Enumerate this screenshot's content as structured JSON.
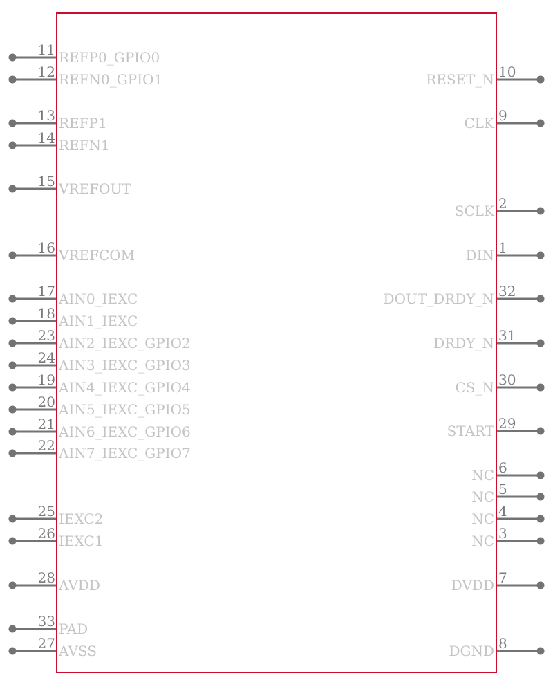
{
  "symbol": {
    "body_color": "#c8102e",
    "pin_color": "#737373",
    "left_pins": [
      {
        "number": "11",
        "name": "REFP0_GPIO0"
      },
      {
        "number": "12",
        "name": "REFN0_GPIO1"
      },
      {
        "number": "13",
        "name": "REFP1"
      },
      {
        "number": "14",
        "name": "REFN1"
      },
      {
        "number": "15",
        "name": "VREFOUT"
      },
      {
        "number": "16",
        "name": "VREFCOM"
      },
      {
        "number": "17",
        "name": "AIN0_IEXC"
      },
      {
        "number": "18",
        "name": "AIN1_IEXC"
      },
      {
        "number": "23",
        "name": "AIN2_IEXC_GPIO2"
      },
      {
        "number": "24",
        "name": "AIN3_IEXC_GPIO3"
      },
      {
        "number": "19",
        "name": "AIN4_IEXC_GPIO4"
      },
      {
        "number": "20",
        "name": "AIN5_IEXC_GPIO5"
      },
      {
        "number": "21",
        "name": "AIN6_IEXC_GPIO6"
      },
      {
        "number": "22",
        "name": "AIN7_IEXC_GPIO7"
      },
      {
        "number": "25",
        "name": "IEXC2"
      },
      {
        "number": "26",
        "name": "IEXC1"
      },
      {
        "number": "28",
        "name": "AVDD"
      },
      {
        "number": "33",
        "name": "PAD"
      },
      {
        "number": "27",
        "name": "AVSS"
      }
    ],
    "right_pins": [
      {
        "number": "10",
        "name": "RESET_N"
      },
      {
        "number": "9",
        "name": "CLK"
      },
      {
        "number": "2",
        "name": "SCLK"
      },
      {
        "number": "1",
        "name": "DIN"
      },
      {
        "number": "32",
        "name": "DOUT_DRDY_N"
      },
      {
        "number": "31",
        "name": "DRDY_N"
      },
      {
        "number": "30",
        "name": "CS_N"
      },
      {
        "number": "29",
        "name": "START"
      },
      {
        "number": "6",
        "name": "NC"
      },
      {
        "number": "5",
        "name": "NC"
      },
      {
        "number": "4",
        "name": "NC"
      },
      {
        "number": "3",
        "name": "NC"
      },
      {
        "number": "7",
        "name": "DVDD"
      },
      {
        "number": "8",
        "name": "DGND"
      }
    ]
  }
}
